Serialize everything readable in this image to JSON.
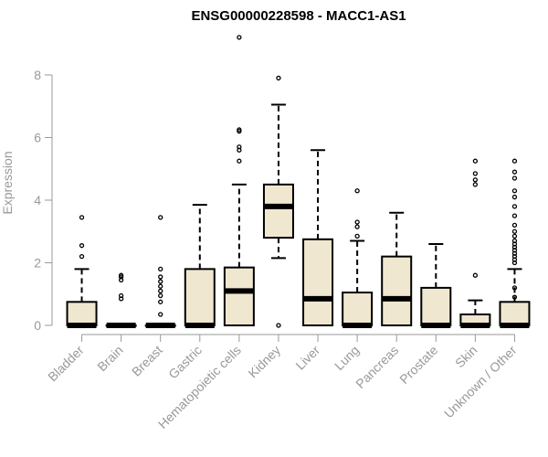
{
  "chart_data": {
    "type": "boxplot",
    "title": "ENSG00000228598 - MACC1-AS1",
    "xlabel": "",
    "ylabel": "Expression",
    "ylim": [
      -0.2,
      9.2
    ],
    "yticks": [
      0,
      2,
      4,
      6,
      8
    ],
    "grid": false,
    "legend": "none",
    "colors": {
      "box_fill": "#efe7cf",
      "box_stroke": "#000000",
      "axis": "#999999",
      "title": "#000000"
    },
    "categories": [
      "Bladder",
      "Brain",
      "Breast",
      "Gastric",
      "Hematopoietic cells",
      "Kidney",
      "Liver",
      "Lung",
      "Pancreas",
      "Prostate",
      "Skin",
      "Unknown / Other"
    ],
    "boxes": [
      {
        "category": "Bladder",
        "whisker_low": 0,
        "q1": 0,
        "median": 0,
        "q3": 0.75,
        "whisker_high": 1.8,
        "outliers": [
          2.2,
          2.55,
          3.45
        ]
      },
      {
        "category": "Brain",
        "whisker_low": 0,
        "q1": 0,
        "median": 0,
        "q3": 0,
        "whisker_high": 0,
        "outliers": [
          0.85,
          0.95,
          1.45,
          1.55,
          1.6
        ]
      },
      {
        "category": "Breast",
        "whisker_low": 0,
        "q1": 0,
        "median": 0,
        "q3": 0,
        "whisker_high": 0,
        "outliers": [
          0.35,
          0.75,
          0.95,
          1.1,
          1.25,
          1.4,
          1.55,
          1.8,
          3.45
        ]
      },
      {
        "category": "Gastric",
        "whisker_low": 0,
        "q1": 0,
        "median": 0,
        "q3": 1.8,
        "whisker_high": 3.85,
        "outliers": []
      },
      {
        "category": "Hematopoietic cells",
        "whisker_low": 0,
        "q1": 0,
        "median": 1.1,
        "q3": 1.85,
        "whisker_high": 4.5,
        "outliers": [
          5.25,
          5.6,
          5.7,
          6.2,
          6.25,
          9.2
        ]
      },
      {
        "category": "Kidney",
        "whisker_low": 2.15,
        "q1": 2.8,
        "median": 3.8,
        "q3": 4.5,
        "whisker_high": 7.05,
        "outliers": [
          0,
          7.9
        ]
      },
      {
        "category": "Liver",
        "whisker_low": 0,
        "q1": 0,
        "median": 0.85,
        "q3": 2.75,
        "whisker_high": 5.6,
        "outliers": []
      },
      {
        "category": "Lung",
        "whisker_low": 0,
        "q1": 0,
        "median": 0,
        "q3": 1.05,
        "whisker_high": 2.7,
        "outliers": [
          2.85,
          3.15,
          3.3,
          4.3
        ]
      },
      {
        "category": "Pancreas",
        "whisker_low": 0,
        "q1": 0,
        "median": 0.85,
        "q3": 2.2,
        "whisker_high": 3.6,
        "outliers": []
      },
      {
        "category": "Prostate",
        "whisker_low": 0,
        "q1": 0,
        "median": 0,
        "q3": 1.2,
        "whisker_high": 2.6,
        "outliers": []
      },
      {
        "category": "Skin",
        "whisker_low": 0,
        "q1": 0,
        "median": 0,
        "q3": 0.35,
        "whisker_high": 0.8,
        "outliers": [
          1.6,
          4.5,
          4.65,
          4.85,
          5.25
        ]
      },
      {
        "category": "Unknown / Other",
        "whisker_low": 0,
        "q1": 0,
        "median": 0,
        "q3": 0.75,
        "whisker_high": 1.8,
        "outliers": [
          0.9,
          1.2,
          2.0,
          2.1,
          2.2,
          2.3,
          2.4,
          2.5,
          2.6,
          2.7,
          2.85,
          3.0,
          3.2,
          3.5,
          3.8,
          4.1,
          4.3,
          4.7,
          4.9,
          5.25
        ]
      }
    ]
  }
}
